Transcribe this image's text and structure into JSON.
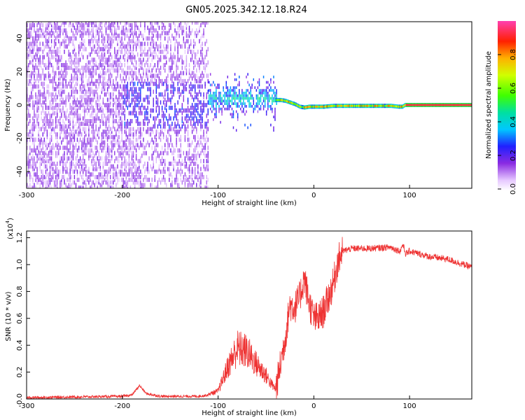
{
  "title": "GN05.2025.342.12.18.R24",
  "chart_data": [
    {
      "type": "heatmap",
      "name": "spectrogram",
      "xlabel": "Height of straight line (km)",
      "ylabel": "Frequency (Hz)",
      "xlim": [
        -300,
        165
      ],
      "ylim": [
        -50,
        50
      ],
      "xticks": [
        "-300",
        "-200",
        "-100",
        "0",
        "100"
      ],
      "xtick_values": [
        -300,
        -200,
        -100,
        0,
        100
      ],
      "yticks": [
        "-40",
        "-20",
        "0",
        "20",
        "40"
      ],
      "ytick_values": [
        -40,
        -20,
        0,
        20,
        40
      ],
      "colorbar": {
        "label": "Normalized spectral amplitude",
        "range": [
          0,
          1
        ],
        "ticks": [
          "0.0",
          "0.2",
          "0.4",
          "0.6",
          "0.8"
        ],
        "tick_values": [
          0.0,
          0.2,
          0.4,
          0.6,
          0.8
        ],
        "colormap": "rainbow (white-violet-blue-cyan-green-yellow-red)"
      },
      "features": [
        {
          "description": "broadband noise spanning full frequency range",
          "height_range": [
            -300,
            -110
          ],
          "amplitude": 0.2
        },
        {
          "description": "energy concentrating near 0-5 Hz",
          "height_range": [
            -110,
            -40
          ],
          "amplitude": 0.4
        },
        {
          "description": "narrow tone tracking ~0 Hz",
          "height_range": [
            -40,
            165
          ],
          "amplitude": 0.95
        }
      ],
      "ridge": {
        "heights": [
          -40,
          -35,
          -30,
          -25,
          -20,
          -15,
          -10,
          -5,
          0,
          10,
          20,
          40,
          60,
          80,
          88,
          92,
          95,
          100,
          120,
          140,
          165
        ],
        "frequencies": [
          3,
          3,
          2.5,
          1.5,
          0.5,
          -1,
          -1.5,
          -1,
          -1,
          -1,
          -0.5,
          -0.5,
          -0.5,
          -0.5,
          -1,
          -1,
          0,
          0,
          0,
          0,
          0
        ]
      }
    },
    {
      "type": "line",
      "name": "snr",
      "xlabel": "Height of straight line (km)",
      "ylabel": "SNR (10 * v/v)",
      "scale_label": "(x10",
      "scale_exp": "4",
      "xlim": [
        -300,
        165
      ],
      "ylim": [
        0,
        1.25
      ],
      "xticks": [
        "-300",
        "-200",
        "-100",
        "0",
        "100"
      ],
      "xtick_values": [
        -300,
        -200,
        -100,
        0,
        100
      ],
      "yticks": [
        "0.0",
        "0.2",
        "0.4",
        "0.6",
        "0.8",
        "1.0",
        "1.2"
      ],
      "ytick_values": [
        0.0,
        0.2,
        0.4,
        0.6,
        0.8,
        1.0,
        1.2
      ],
      "color": "#ee3333",
      "series": [
        {
          "name": "SNR",
          "x": [
            -300,
            -250,
            -200,
            -190,
            -182,
            -175,
            -160,
            -140,
            -120,
            -110,
            -100,
            -90,
            -80,
            -70,
            -60,
            -50,
            -45,
            -40,
            -35,
            -30,
            -25,
            -20,
            -15,
            -10,
            -5,
            0,
            5,
            10,
            15,
            20,
            25,
            30,
            40,
            60,
            80,
            90,
            93,
            96,
            100,
            110,
            120,
            140,
            165
          ],
          "y": [
            0.01,
            0.015,
            0.02,
            0.03,
            0.1,
            0.04,
            0.02,
            0.02,
            0.02,
            0.03,
            0.05,
            0.2,
            0.32,
            0.3,
            0.22,
            0.15,
            0.1,
            0.06,
            0.25,
            0.45,
            0.7,
            0.68,
            0.75,
            0.9,
            0.72,
            0.6,
            0.6,
            0.65,
            0.75,
            0.85,
            1.02,
            1.1,
            1.12,
            1.12,
            1.13,
            1.1,
            1.15,
            1.08,
            1.1,
            1.08,
            1.06,
            1.04,
            0.98
          ]
        }
      ]
    }
  ]
}
